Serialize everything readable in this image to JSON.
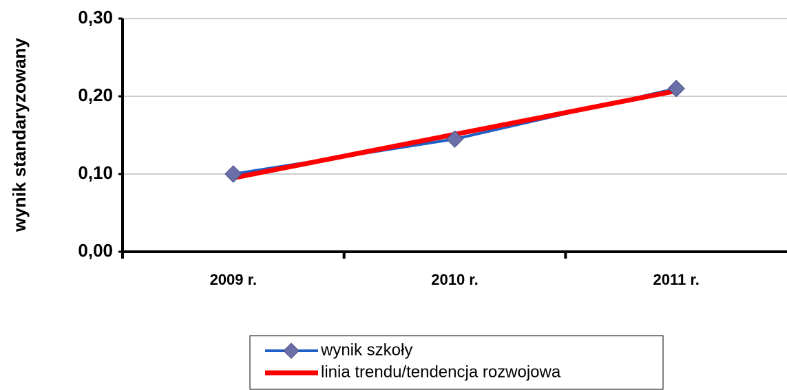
{
  "chart_data": {
    "type": "line",
    "y_label": "wynik standaryzowany",
    "categories": [
      "2009 r.",
      "2010 r.",
      "2011 r."
    ],
    "series": [
      {
        "name": "wynik szkoły",
        "color": "#1f5fc8",
        "marker": "diamond",
        "marker_color": "#6a6fa8",
        "values": [
          0.1,
          0.145,
          0.21
        ]
      },
      {
        "name": "linia trendu/tendencja rozwojowa",
        "color": "#ff0000",
        "values": [
          0.095,
          0.151,
          0.207
        ]
      }
    ],
    "ylim": [
      0,
      0.3
    ],
    "yticks": [
      {
        "value": 0,
        "label": "0,00"
      },
      {
        "value": 0.1,
        "label": "0,10"
      },
      {
        "value": 0.2,
        "label": "0,20"
      },
      {
        "value": 0.3,
        "label": "0,30"
      }
    ],
    "grid": true
  }
}
